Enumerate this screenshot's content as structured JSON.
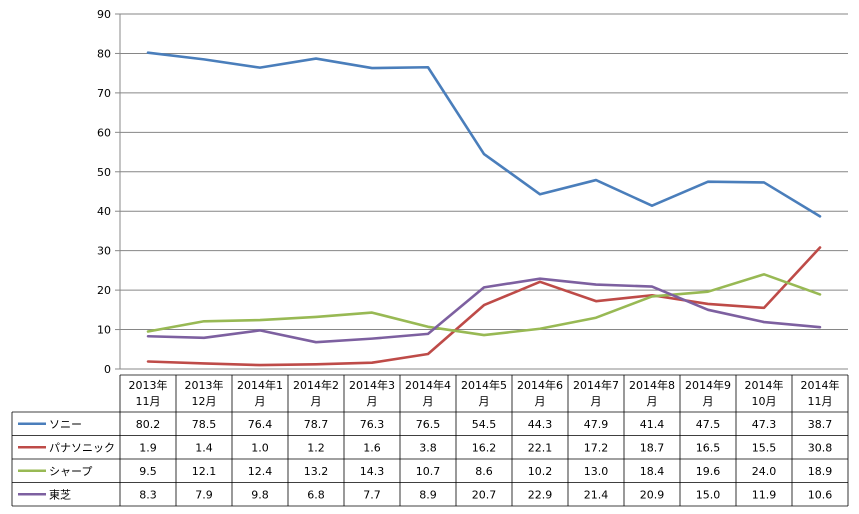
{
  "chart_data": {
    "type": "line",
    "categories": [
      [
        "2013年",
        "11月"
      ],
      [
        "2013年",
        "12月"
      ],
      [
        "2014年1",
        "月"
      ],
      [
        "2014年2",
        "月"
      ],
      [
        "2014年3",
        "月"
      ],
      [
        "2014年4",
        "月"
      ],
      [
        "2014年5",
        "月"
      ],
      [
        "2014年6",
        "月"
      ],
      [
        "2014年7",
        "月"
      ],
      [
        "2014年8",
        "月"
      ],
      [
        "2014年9",
        "月"
      ],
      [
        "2014年",
        "10月"
      ],
      [
        "2014年",
        "11月"
      ]
    ],
    "series": [
      {
        "name": "ソニー",
        "color": "#4a7ebb",
        "values": [
          80.2,
          78.5,
          76.4,
          78.7,
          76.3,
          76.5,
          54.5,
          44.3,
          47.9,
          41.4,
          47.5,
          47.3,
          38.7
        ]
      },
      {
        "name": "パナソニック",
        "color": "#be4b48",
        "values": [
          1.9,
          1.4,
          1.0,
          1.2,
          1.6,
          3.8,
          16.2,
          22.1,
          17.2,
          18.7,
          16.5,
          15.5,
          30.8
        ]
      },
      {
        "name": "シャープ",
        "color": "#98b954",
        "values": [
          9.5,
          12.1,
          12.4,
          13.2,
          14.3,
          10.7,
          8.6,
          10.2,
          13.0,
          18.4,
          19.6,
          24.0,
          18.9
        ]
      },
      {
        "name": "東芝",
        "color": "#7d60a0",
        "values": [
          8.3,
          7.9,
          9.8,
          6.8,
          7.7,
          8.9,
          20.7,
          22.9,
          21.4,
          20.9,
          15.0,
          11.9,
          10.6
        ]
      }
    ],
    "yticks": [
      "0",
      "10",
      "20",
      "30",
      "40",
      "50",
      "60",
      "70",
      "80",
      "90"
    ],
    "ylim": [
      0,
      90
    ],
    "grid": true,
    "legend": "data-table"
  }
}
